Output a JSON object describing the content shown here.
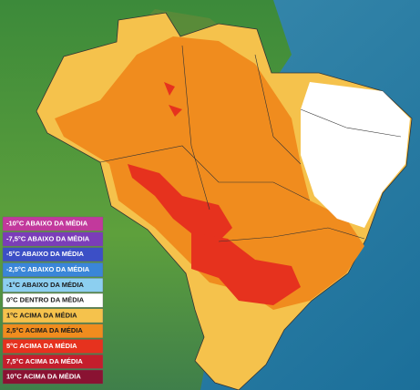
{
  "legend": [
    {
      "label": "-10°C ABAIXO DA MÉDIA",
      "color": "#c2399c",
      "text_color": "#ffffff"
    },
    {
      "label": "-7,5°C ABAIXO DA MÉDIA",
      "color": "#7b3db8",
      "text_color": "#ffffff"
    },
    {
      "label": "-5°C ABAIXO DA MÉDIA",
      "color": "#3c4fc6",
      "text_color": "#ffffff"
    },
    {
      "label": "-2,5°C ABAIXO DA MÉDIA",
      "color": "#3a86d8",
      "text_color": "#ffffff"
    },
    {
      "label": "-1°C ABAIXO DA MÉDIA",
      "color": "#8ccff0",
      "text_color": "#1a1a1a"
    },
    {
      "label": "0°C DENTRO DA MÉDIA",
      "color": "#ffffff",
      "text_color": "#1a1a1a"
    },
    {
      "label": "1°C ACIMA DA MÉDIA",
      "color": "#f5c24c",
      "text_color": "#1a1a1a"
    },
    {
      "label": "2,5°C ACIMA DA MÉDIA",
      "color": "#f08c1e",
      "text_color": "#1a1a1a"
    },
    {
      "label": "5°C ACIMA DA MÉDIA",
      "color": "#e6321e",
      "text_color": "#ffffff"
    },
    {
      "label": "7,5°C ACIMA DA MÉDIA",
      "color": "#c41e2c",
      "text_color": "#ffffff"
    },
    {
      "label": "10°C ACIMA DA MÉDIA",
      "color": "#8a1232",
      "text_color": "#ffffff"
    }
  ]
}
